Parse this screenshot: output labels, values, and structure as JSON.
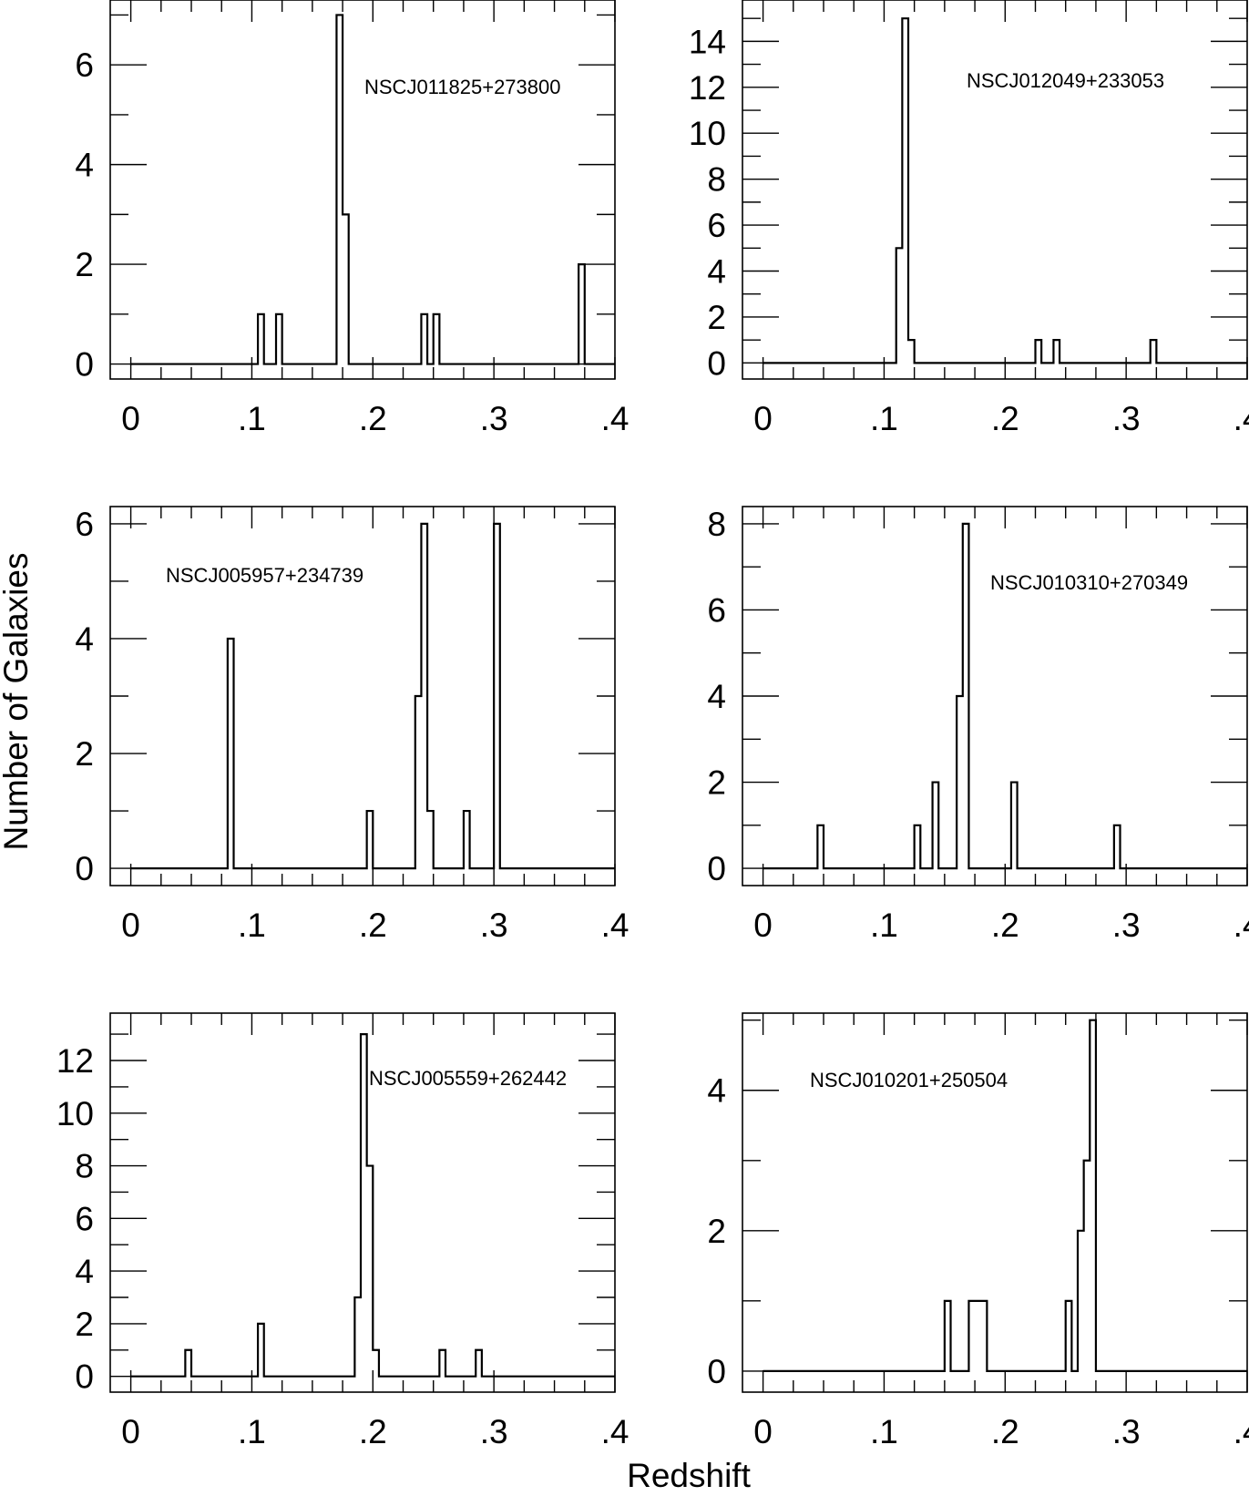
{
  "figure": {
    "ylabel": "Number of Galaxies",
    "xlabel": "Redshift"
  },
  "chart_data": [
    {
      "type": "bar",
      "label": "NSCJ011825+273800",
      "bin_width": 0.005,
      "xlim": [
        -0.017,
        0.4
      ],
      "ylim": [
        -0.3,
        7.3
      ],
      "xticks": [
        0,
        0.1,
        0.2,
        0.3,
        0.4
      ],
      "xtick_labels": [
        "0",
        ".1",
        ".2",
        ".3",
        ".4"
      ],
      "yticks": [
        0,
        2,
        4,
        6
      ],
      "yminor": [
        1,
        3,
        5,
        7
      ],
      "bins": [
        [
          0.105,
          1
        ],
        [
          0.12,
          1
        ],
        [
          0.17,
          7
        ],
        [
          0.175,
          3
        ],
        [
          0.24,
          1
        ],
        [
          0.25,
          1
        ],
        [
          0.37,
          2
        ]
      ]
    },
    {
      "type": "bar",
      "label": "NSCJ012049+233053",
      "bin_width": 0.005,
      "xlim": [
        -0.017,
        0.4
      ],
      "ylim": [
        -0.7,
        15.8
      ],
      "xticks": [
        0,
        0.1,
        0.2,
        0.3,
        0.4
      ],
      "xtick_labels": [
        "0",
        ".1",
        ".2",
        ".3",
        ".4"
      ],
      "yticks": [
        0,
        2,
        4,
        6,
        8,
        10,
        12,
        14
      ],
      "yminor": [
        1,
        3,
        5,
        7,
        9,
        11,
        13,
        15
      ],
      "bins": [
        [
          0.11,
          5
        ],
        [
          0.115,
          15
        ],
        [
          0.12,
          1
        ],
        [
          0.225,
          1
        ],
        [
          0.24,
          1
        ],
        [
          0.32,
          1
        ]
      ]
    },
    {
      "type": "bar",
      "label": "NSCJ005957+234739",
      "bin_width": 0.005,
      "xlim": [
        -0.017,
        0.4
      ],
      "ylim": [
        -0.3,
        6.3
      ],
      "xticks": [
        0,
        0.1,
        0.2,
        0.3,
        0.4
      ],
      "xtick_labels": [
        "0",
        ".1",
        ".2",
        ".3",
        ".4"
      ],
      "yticks": [
        0,
        2,
        4,
        6
      ],
      "yminor": [
        1,
        3,
        5
      ],
      "bins": [
        [
          0.08,
          4
        ],
        [
          0.195,
          1
        ],
        [
          0.235,
          3
        ],
        [
          0.24,
          6
        ],
        [
          0.245,
          1
        ],
        [
          0.275,
          1
        ],
        [
          0.3,
          6
        ]
      ]
    },
    {
      "type": "bar",
      "label": "NSCJ010310+270349",
      "bin_width": 0.005,
      "xlim": [
        -0.017,
        0.4
      ],
      "ylim": [
        -0.4,
        8.4
      ],
      "xticks": [
        0,
        0.1,
        0.2,
        0.3,
        0.4
      ],
      "xtick_labels": [
        "0",
        ".1",
        ".2",
        ".3",
        ".4"
      ],
      "yticks": [
        0,
        2,
        4,
        6,
        8
      ],
      "yminor": [
        1,
        3,
        5,
        7
      ],
      "bins": [
        [
          0.045,
          1
        ],
        [
          0.125,
          1
        ],
        [
          0.14,
          2
        ],
        [
          0.16,
          4
        ],
        [
          0.165,
          8
        ],
        [
          0.205,
          2
        ],
        [
          0.29,
          1
        ]
      ]
    },
    {
      "type": "bar",
      "label": "NSCJ005559+262442",
      "bin_width": 0.005,
      "xlim": [
        -0.017,
        0.4
      ],
      "ylim": [
        -0.6,
        13.8
      ],
      "xticks": [
        0,
        0.1,
        0.2,
        0.3,
        0.4
      ],
      "xtick_labels": [
        "0",
        ".1",
        ".2",
        ".3",
        ".4"
      ],
      "yticks": [
        0,
        2,
        4,
        6,
        8,
        10,
        12
      ],
      "yminor": [
        1,
        3,
        5,
        7,
        9,
        11,
        13
      ],
      "bins": [
        [
          0.045,
          1
        ],
        [
          0.105,
          2
        ],
        [
          0.185,
          3
        ],
        [
          0.19,
          13
        ],
        [
          0.195,
          8
        ],
        [
          0.2,
          1
        ],
        [
          0.255,
          1
        ],
        [
          0.285,
          1
        ]
      ]
    },
    {
      "type": "bar",
      "label": "NSCJ010201+250504",
      "bin_width": 0.005,
      "xlim": [
        -0.017,
        0.4
      ],
      "ylim": [
        -0.3,
        5.1
      ],
      "xticks": [
        0,
        0.1,
        0.2,
        0.3,
        0.4
      ],
      "xtick_labels": [
        "0",
        ".1",
        ".2",
        ".3",
        ".4"
      ],
      "yticks": [
        0,
        2,
        4
      ],
      "yminor": [
        1,
        3,
        5
      ],
      "bins": [
        [
          0.15,
          1
        ],
        [
          0.17,
          1
        ],
        [
          0.175,
          1
        ],
        [
          0.18,
          1
        ],
        [
          0.25,
          1
        ],
        [
          0.26,
          2
        ],
        [
          0.265,
          3
        ],
        [
          0.27,
          5
        ]
      ]
    }
  ]
}
